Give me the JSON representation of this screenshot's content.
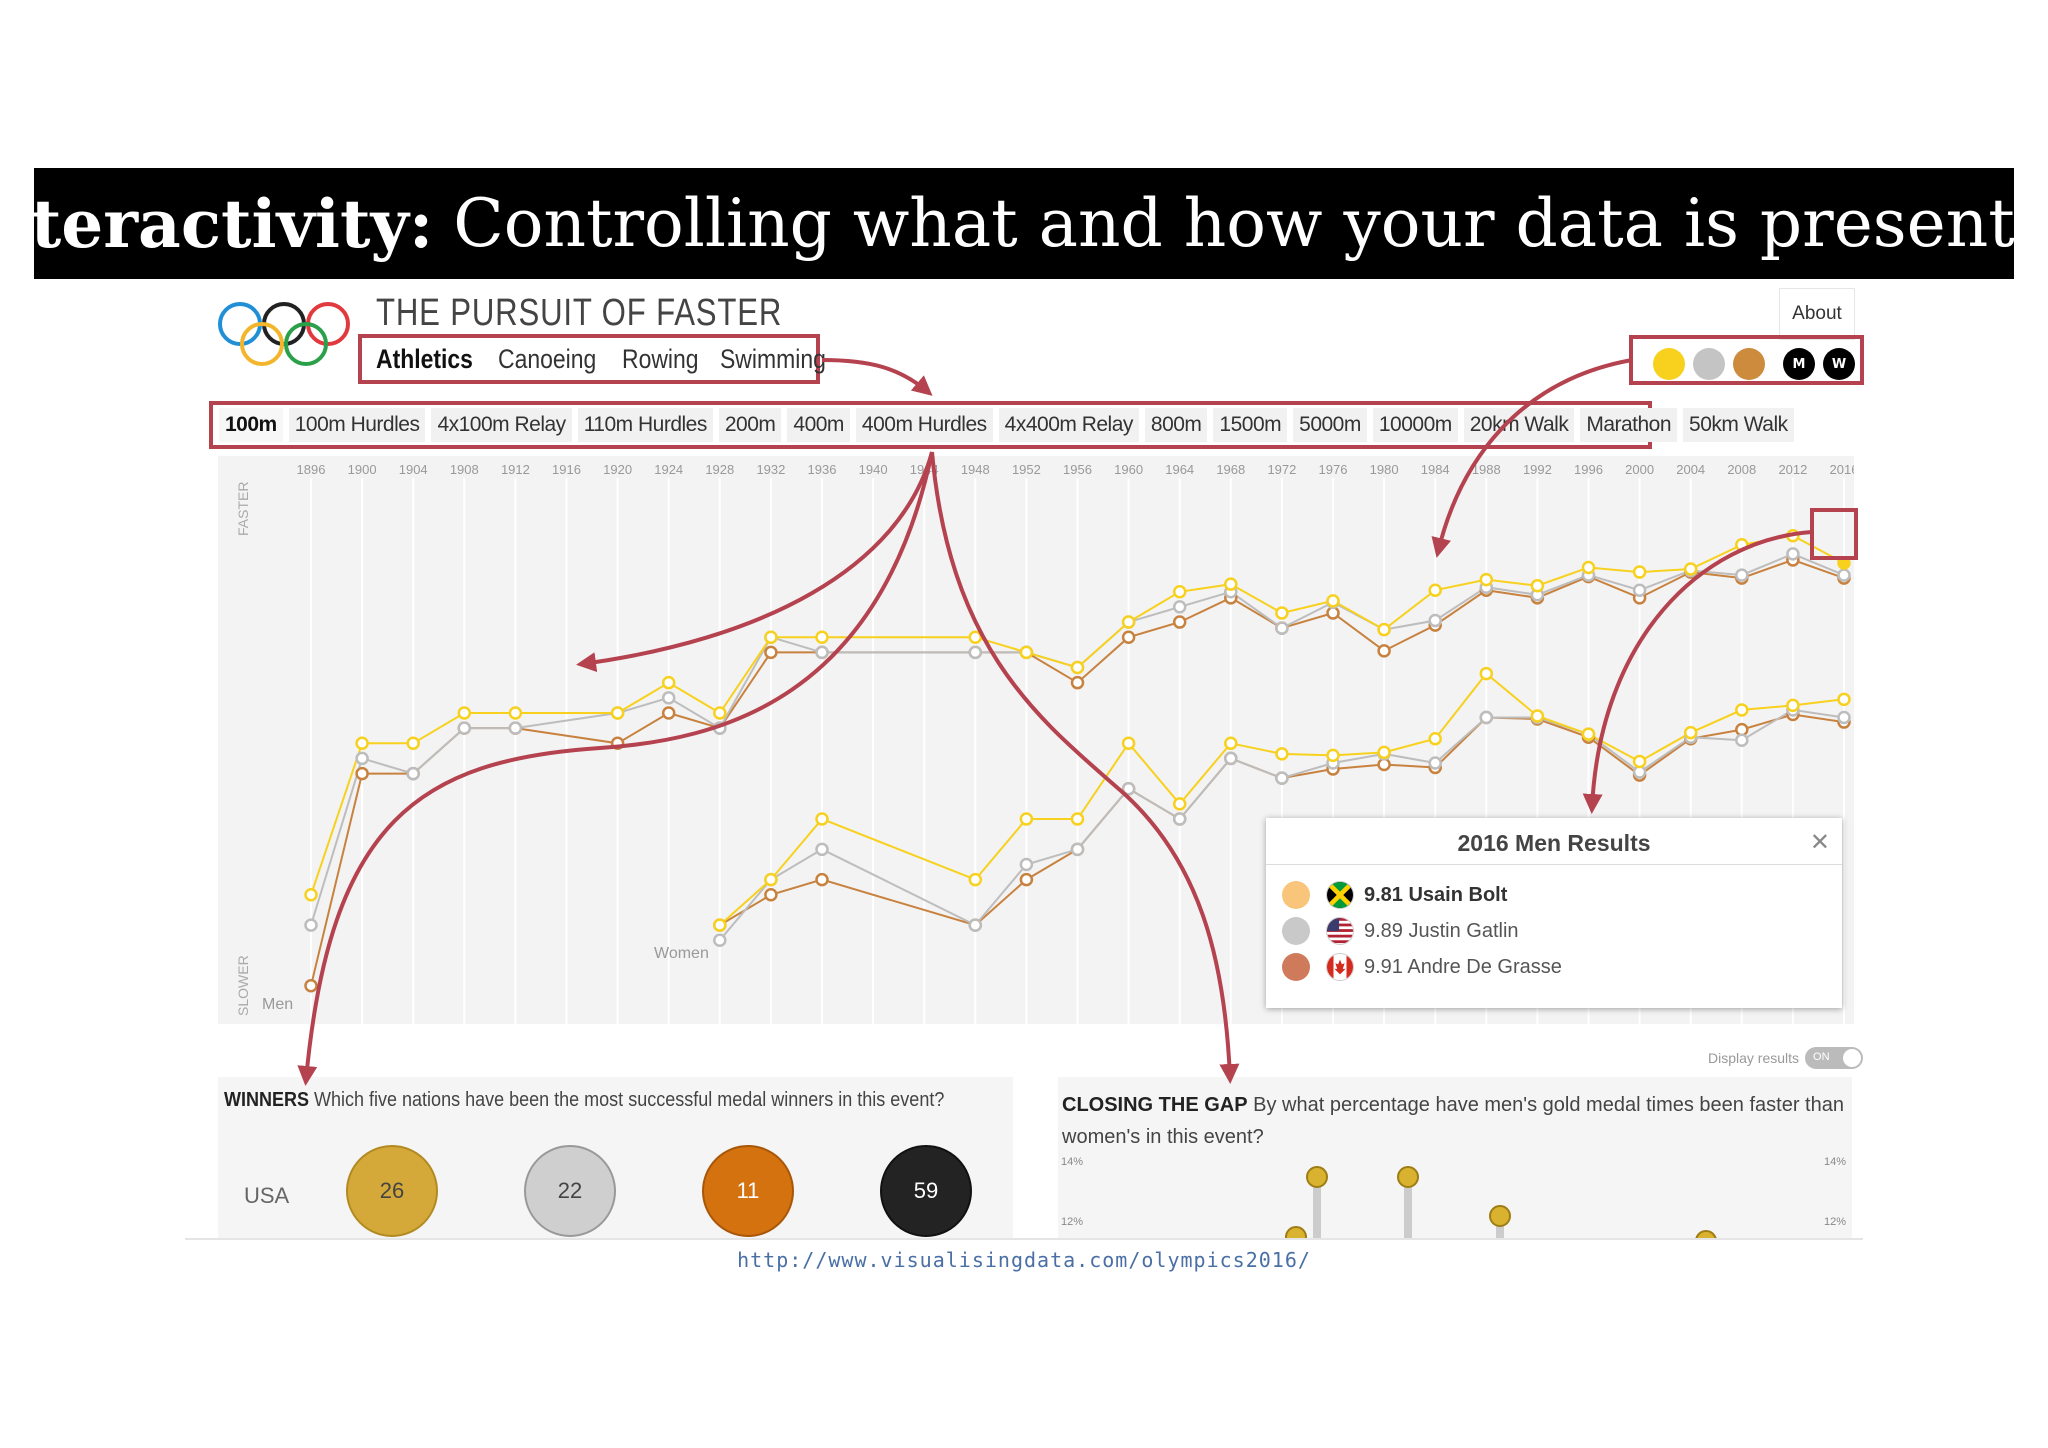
{
  "slide": {
    "heading_bold": "Interactivity:",
    "heading_rest": "Controlling what and how your data is presented",
    "source_url": "http://www.visualisingdata.com/olympics2016/"
  },
  "app": {
    "title": "THE PURSUIT OF FASTER",
    "about_label": "About",
    "sports": [
      {
        "label": "Athletics",
        "active": true
      },
      {
        "label": "Canoeing",
        "active": false
      },
      {
        "label": "Rowing",
        "active": false
      },
      {
        "label": "Swimming",
        "active": false
      }
    ],
    "events": [
      {
        "label": "100m",
        "active": true
      },
      {
        "label": "100m Hurdles"
      },
      {
        "label": "4x100m Relay"
      },
      {
        "label": "110m Hurdles"
      },
      {
        "label": "200m"
      },
      {
        "label": "400m"
      },
      {
        "label": "400m Hurdles"
      },
      {
        "label": "4x400m Relay"
      },
      {
        "label": "800m"
      },
      {
        "label": "1500m"
      },
      {
        "label": "5000m"
      },
      {
        "label": "10000m"
      },
      {
        "label": "20km Walk"
      },
      {
        "label": "Marathon"
      },
      {
        "label": "50km Walk"
      }
    ],
    "medal_colors": {
      "gold": "#f7d11e",
      "silver": "#c4c4c4",
      "bronze": "#cd8b3d"
    },
    "gender_buttons": [
      "M",
      "W"
    ],
    "accent": "#b5424f"
  },
  "chart_data": {
    "type": "line",
    "x_label_top": "FASTER",
    "x_label_bottom": "SLOWER",
    "years": [
      "1896",
      "1900",
      "1904",
      "1908",
      "1912",
      "1916",
      "1920",
      "1924",
      "1928",
      "1932",
      "1936",
      "1940",
      "1944",
      "1948",
      "1952",
      "1956",
      "1960",
      "1964",
      "1968",
      "1972",
      "1976",
      "1980",
      "1984",
      "1988",
      "1992",
      "1996",
      "2000",
      "2004",
      "2008",
      "2012",
      "2016"
    ],
    "men_label": "Men",
    "women_label": "Women",
    "men": {
      "gold": [
        12.0,
        11.0,
        11.0,
        10.8,
        10.8,
        null,
        10.8,
        10.6,
        10.8,
        10.3,
        10.3,
        null,
        null,
        10.3,
        10.4,
        10.5,
        10.2,
        10.0,
        9.95,
        10.14,
        10.06,
        10.25,
        9.99,
        9.92,
        9.96,
        9.84,
        9.87,
        9.85,
        9.69,
        9.63,
        9.81
      ],
      "silver": [
        12.2,
        11.1,
        11.2,
        10.9,
        10.9,
        null,
        10.8,
        10.7,
        10.9,
        10.3,
        10.4,
        null,
        null,
        10.4,
        10.4,
        10.5,
        10.2,
        10.1,
        10.0,
        10.24,
        10.07,
        10.25,
        10.19,
        9.97,
        10.02,
        9.89,
        9.99,
        9.86,
        9.89,
        9.75,
        9.89
      ],
      "bronze": [
        12.6,
        11.2,
        11.2,
        10.9,
        10.9,
        null,
        11.0,
        10.8,
        10.9,
        10.4,
        10.4,
        null,
        null,
        10.4,
        10.4,
        10.6,
        10.3,
        10.2,
        10.04,
        10.24,
        10.14,
        10.39,
        10.22,
        9.99,
        10.04,
        9.9,
        10.04,
        9.87,
        9.91,
        9.79,
        9.91
      ]
    },
    "women": {
      "gold": [
        null,
        null,
        null,
        null,
        null,
        null,
        null,
        null,
        12.2,
        11.9,
        11.5,
        null,
        null,
        11.9,
        11.5,
        11.5,
        11.0,
        11.4,
        11.0,
        11.07,
        11.08,
        11.06,
        10.97,
        10.54,
        10.82,
        10.94,
        11.12,
        10.93,
        10.78,
        10.75,
        10.71
      ],
      "silver": [
        null,
        null,
        null,
        null,
        null,
        null,
        null,
        null,
        12.3,
        11.9,
        11.7,
        null,
        null,
        12.2,
        11.8,
        11.7,
        11.3,
        11.5,
        11.1,
        11.23,
        11.13,
        11.07,
        11.13,
        10.83,
        10.83,
        10.94,
        11.19,
        10.96,
        10.98,
        10.78,
        10.83
      ],
      "bronze": [
        null,
        null,
        null,
        null,
        null,
        null,
        null,
        null,
        12.2,
        12.0,
        11.9,
        null,
        null,
        12.2,
        11.9,
        11.7,
        11.3,
        11.5,
        11.1,
        11.23,
        11.17,
        11.14,
        11.16,
        10.83,
        10.84,
        10.96,
        11.21,
        10.97,
        10.91,
        10.81,
        10.86
      ]
    },
    "ylim": [
      9.5,
      12.8
    ]
  },
  "popup": {
    "title": "2016 Men Results",
    "results": [
      {
        "medal": "gold",
        "text": "9.81 Usain Bolt",
        "flag": "jamaica-flag-icon"
      },
      {
        "medal": "silver",
        "text": "9.89 Justin Gatlin",
        "flag": "usa-flag-icon"
      },
      {
        "medal": "bronze",
        "text": "9.91 Andre De Grasse",
        "flag": "canada-flag-icon"
      }
    ]
  },
  "display_results": {
    "label": "Display results",
    "state": "ON"
  },
  "winners": {
    "heading": "WINNERS",
    "question": "Which five nations have been the most successful medal winners in this event?",
    "country": "USA",
    "gold": "26",
    "silver": "22",
    "bronze": "11",
    "total": "59"
  },
  "closing_gap": {
    "heading": "CLOSING THE GAP",
    "question": "By what percentage have men's gold medal times been faster than women's in this event?",
    "tick_14": "14%",
    "tick_12": "12%"
  }
}
